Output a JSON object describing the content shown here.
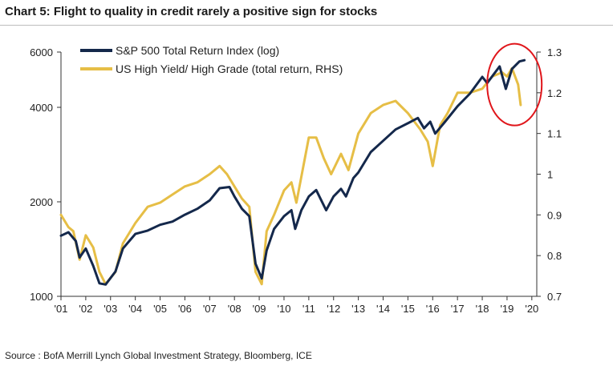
{
  "title": "Chart 5: Flight to quality in credit rarely a positive sign for stocks",
  "source": "Source : BofA Merrill Lynch Global Investment Strategy, Bloomberg, ICE",
  "chart_data": {
    "type": "line",
    "xlim": [
      2001.0,
      2020.2
    ],
    "x_ticks": [
      2001,
      2002,
      2003,
      2004,
      2005,
      2006,
      2007,
      2008,
      2009,
      2010,
      2011,
      2012,
      2013,
      2014,
      2015,
      2016,
      2017,
      2018,
      2019,
      2020
    ],
    "x_tick_labels": [
      "'01",
      "'02",
      "'03",
      "'04",
      "'05",
      "'06",
      "'07",
      "'08",
      "'09",
      "'10",
      "'11",
      "'12",
      "'13",
      "'14",
      "'15",
      "'16",
      "'17",
      "'18",
      "'19",
      "'20"
    ],
    "y_left": {
      "scale": "log",
      "lim": [
        1000,
        6000
      ],
      "ticks": [
        1000,
        2000,
        4000,
        6000
      ],
      "tick_labels": [
        "1000",
        "2000",
        "4000",
        "6000"
      ]
    },
    "y_right": {
      "scale": "linear",
      "lim": [
        0.7,
        1.3
      ],
      "ticks": [
        0.7,
        0.8,
        0.9,
        1.0,
        1.1,
        1.2,
        1.3
      ],
      "tick_labels": [
        "0.7",
        "0.8",
        "0.9",
        "1",
        "1.1",
        "1.2",
        "1.3"
      ]
    },
    "legend_position": "top-left",
    "colors": {
      "sp500": "#14284b",
      "hy_hg": "#e6be46",
      "highlight": "#e0161b"
    },
    "annotation": {
      "type": "circle",
      "color": "#e0161b",
      "x_center": 2019.3,
      "y_center_right": 1.22
    },
    "series": [
      {
        "name": "S&P 500 Total Return Index (log)",
        "axis": "left",
        "x": [
          2001.0,
          2001.3,
          2001.6,
          2001.75,
          2002.0,
          2002.3,
          2002.55,
          2002.8,
          2003.2,
          2003.5,
          2004.0,
          2004.5,
          2005.0,
          2005.5,
          2006.0,
          2006.5,
          2007.0,
          2007.4,
          2007.8,
          2008.0,
          2008.3,
          2008.6,
          2008.85,
          2009.1,
          2009.3,
          2009.6,
          2010.0,
          2010.3,
          2010.45,
          2010.7,
          2011.0,
          2011.3,
          2011.7,
          2012.0,
          2012.3,
          2012.5,
          2012.8,
          2013.0,
          2013.5,
          2014.0,
          2014.5,
          2015.0,
          2015.4,
          2015.65,
          2015.9,
          2016.1,
          2016.5,
          2017.0,
          2017.5,
          2018.0,
          2018.2,
          2018.7,
          2018.95,
          2019.2,
          2019.5,
          2019.7
        ],
        "values": [
          1560,
          1600,
          1500,
          1330,
          1420,
          1250,
          1100,
          1090,
          1200,
          1420,
          1580,
          1620,
          1690,
          1730,
          1820,
          1900,
          2020,
          2210,
          2230,
          2080,
          1900,
          1800,
          1270,
          1140,
          1400,
          1640,
          1800,
          1880,
          1640,
          1880,
          2080,
          2180,
          1880,
          2080,
          2200,
          2080,
          2380,
          2480,
          2880,
          3130,
          3400,
          3560,
          3700,
          3430,
          3600,
          3300,
          3600,
          4030,
          4420,
          5000,
          4780,
          5400,
          4580,
          5300,
          5600,
          5650
        ]
      },
      {
        "name": "US High Yield/ High Grade (total return, RHS)",
        "axis": "right",
        "x": [
          2001.0,
          2001.3,
          2001.5,
          2001.75,
          2002.0,
          2002.3,
          2002.55,
          2002.8,
          2003.2,
          2003.5,
          2004.0,
          2004.5,
          2005.0,
          2005.5,
          2006.0,
          2006.5,
          2007.0,
          2007.4,
          2007.7,
          2008.0,
          2008.3,
          2008.6,
          2008.85,
          2009.1,
          2009.3,
          2009.6,
          2010.0,
          2010.3,
          2010.5,
          2011.0,
          2011.3,
          2011.6,
          2011.9,
          2012.3,
          2012.6,
          2013.0,
          2013.5,
          2014.0,
          2014.5,
          2015.0,
          2015.5,
          2015.8,
          2016.0,
          2016.3,
          2016.6,
          2017.0,
          2017.5,
          2018.0,
          2018.4,
          2018.8,
          2019.0,
          2019.2,
          2019.45,
          2019.55
        ],
        "values": [
          0.9,
          0.87,
          0.86,
          0.79,
          0.85,
          0.82,
          0.76,
          0.73,
          0.76,
          0.83,
          0.88,
          0.92,
          0.93,
          0.95,
          0.97,
          0.98,
          1.0,
          1.02,
          1.0,
          0.97,
          0.94,
          0.92,
          0.76,
          0.73,
          0.86,
          0.9,
          0.96,
          0.98,
          0.93,
          1.09,
          1.09,
          1.04,
          1.0,
          1.05,
          1.01,
          1.1,
          1.15,
          1.17,
          1.18,
          1.15,
          1.11,
          1.08,
          1.02,
          1.12,
          1.15,
          1.2,
          1.2,
          1.21,
          1.24,
          1.25,
          1.24,
          1.26,
          1.22,
          1.17
        ]
      }
    ]
  }
}
